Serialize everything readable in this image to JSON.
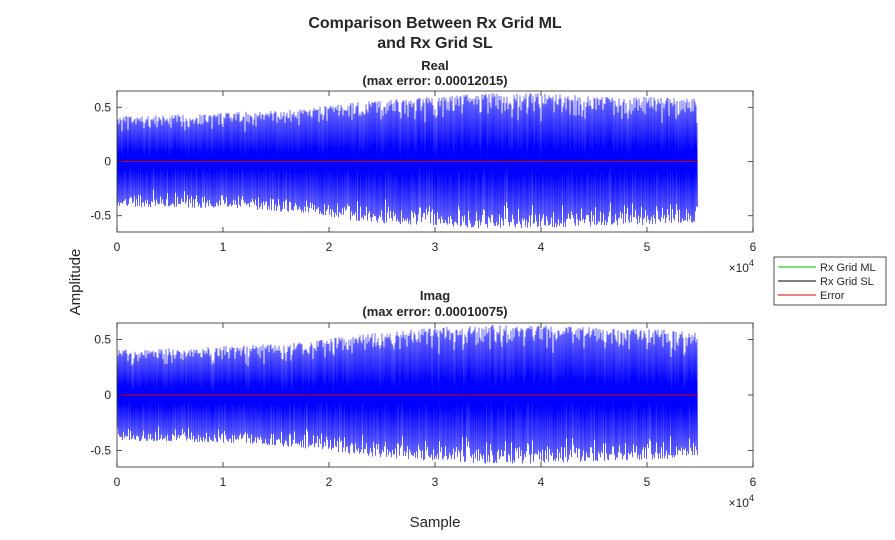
{
  "figure": {
    "title_line1": "Comparison Between Rx Grid ML",
    "title_line2": "and Rx Grid SL",
    "xlabel": "Sample",
    "ylabel": "Amplitude",
    "exponent_base": "×10",
    "exponent_power": "4"
  },
  "legend": {
    "placement": "right",
    "entries": [
      {
        "name": "Rx Grid ML",
        "color": "#00c000"
      },
      {
        "name": "Rx Grid SL",
        "color": "#000000"
      },
      {
        "name": "Error",
        "color": "#d00000"
      }
    ]
  },
  "chart_data": [
    {
      "type": "line",
      "title_line1": "Real",
      "title_line2": "(max error: 0.00012015)",
      "xlim": [
        0,
        60000
      ],
      "ylim": [
        -0.65,
        0.65
      ],
      "xticks": [
        0,
        10000,
        20000,
        30000,
        40000,
        50000,
        60000
      ],
      "xtick_labels": [
        "0",
        "1",
        "2",
        "3",
        "4",
        "5",
        "6"
      ],
      "yticks": [
        0.5,
        0,
        -0.5
      ],
      "ytick_labels": [
        "0.5",
        "0",
        "-0.5"
      ],
      "grid": false,
      "signal_color": "#0000ff",
      "error_color": "#d00000",
      "envelope": {
        "x": [
          0,
          2500,
          5000,
          7500,
          10000,
          12500,
          15000,
          17500,
          20000,
          22500,
          25000,
          27500,
          30000,
          32500,
          35000,
          37500,
          40000,
          42500,
          45000,
          47500,
          50000,
          52500,
          54800
        ],
        "upper": [
          0.42,
          0.42,
          0.43,
          0.44,
          0.45,
          0.46,
          0.47,
          0.48,
          0.52,
          0.55,
          0.57,
          0.58,
          0.6,
          0.62,
          0.63,
          0.63,
          0.63,
          0.62,
          0.61,
          0.6,
          0.6,
          0.59,
          0.58
        ],
        "lower": [
          -0.42,
          -0.42,
          -0.42,
          -0.43,
          -0.43,
          -0.44,
          -0.46,
          -0.48,
          -0.51,
          -0.55,
          -0.57,
          -0.58,
          -0.59,
          -0.61,
          -0.62,
          -0.62,
          -0.62,
          -0.61,
          -0.6,
          -0.59,
          -0.59,
          -0.58,
          -0.57
        ]
      },
      "error": {
        "x": [
          0,
          54800
        ],
        "y": [
          0,
          0
        ]
      }
    },
    {
      "type": "line",
      "title_line1": "Imag",
      "title_line2": "(max error: 0.00010075)",
      "xlim": [
        0,
        60000
      ],
      "ylim": [
        -0.65,
        0.65
      ],
      "xticks": [
        0,
        10000,
        20000,
        30000,
        40000,
        50000,
        60000
      ],
      "xtick_labels": [
        "0",
        "1",
        "2",
        "3",
        "4",
        "5",
        "6"
      ],
      "yticks": [
        0.5,
        0,
        -0.5
      ],
      "ytick_labels": [
        "0.5",
        "0",
        "-0.5"
      ],
      "grid": false,
      "signal_color": "#0000ff",
      "error_color": "#d00000",
      "envelope": {
        "x": [
          0,
          2500,
          5000,
          7500,
          10000,
          12500,
          15000,
          17500,
          20000,
          22500,
          25000,
          27500,
          30000,
          32500,
          35000,
          37500,
          40000,
          42500,
          45000,
          47500,
          50000,
          52500,
          54800
        ],
        "upper": [
          0.41,
          0.41,
          0.42,
          0.43,
          0.44,
          0.45,
          0.46,
          0.48,
          0.51,
          0.54,
          0.57,
          0.59,
          0.61,
          0.62,
          0.63,
          0.63,
          0.63,
          0.62,
          0.61,
          0.6,
          0.6,
          0.59,
          0.58
        ],
        "lower": [
          -0.41,
          -0.42,
          -0.42,
          -0.43,
          -0.43,
          -0.44,
          -0.46,
          -0.48,
          -0.51,
          -0.55,
          -0.57,
          -0.58,
          -0.6,
          -0.61,
          -0.62,
          -0.62,
          -0.62,
          -0.61,
          -0.6,
          -0.59,
          -0.59,
          -0.58,
          -0.57
        ]
      },
      "error": {
        "x": [
          0,
          54800
        ],
        "y": [
          0,
          0
        ]
      }
    }
  ]
}
